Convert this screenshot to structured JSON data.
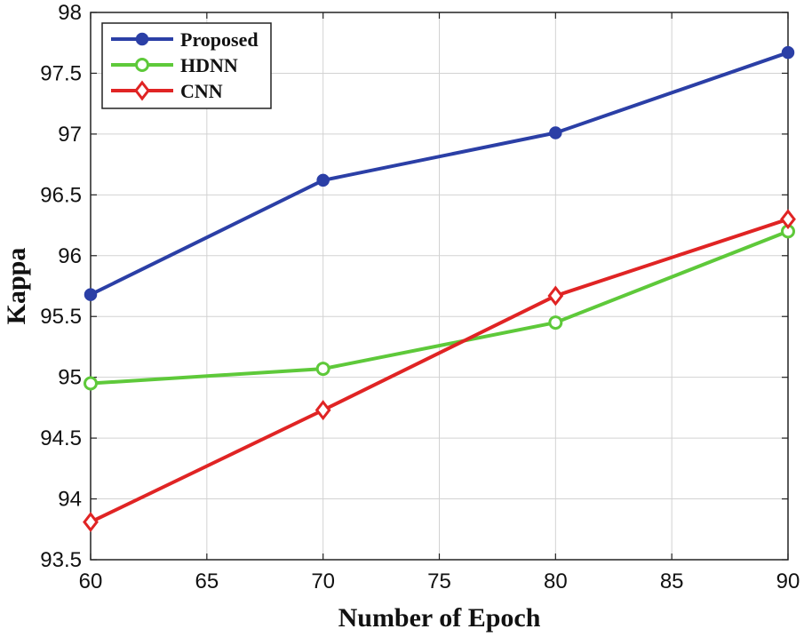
{
  "chart_data": {
    "type": "line",
    "title": "",
    "xlabel": "Number of Epoch",
    "ylabel": "Kappa",
    "x": [
      60,
      70,
      80,
      90
    ],
    "xlim": [
      60,
      90
    ],
    "ylim": [
      93.5,
      98
    ],
    "xticks": [
      "60",
      "65",
      "70",
      "75",
      "80",
      "85",
      "90"
    ],
    "yticks": [
      "93.5",
      "94",
      "94.5",
      "95",
      "95.5",
      "96",
      "96.5",
      "97",
      "97.5",
      "98"
    ],
    "grid": true,
    "legend_position": "top-left",
    "series": [
      {
        "name": "Proposed",
        "values": [
          95.68,
          96.62,
          97.01,
          97.67
        ],
        "color": "#2b3fa6",
        "marker": "circle-filled"
      },
      {
        "name": "HDNN",
        "values": [
          94.95,
          95.07,
          95.45,
          96.2
        ],
        "color": "#5ec93a",
        "marker": "circle-open"
      },
      {
        "name": "CNN",
        "values": [
          93.81,
          94.73,
          95.67,
          96.3
        ],
        "color": "#e02424",
        "marker": "diamond-open"
      }
    ]
  }
}
